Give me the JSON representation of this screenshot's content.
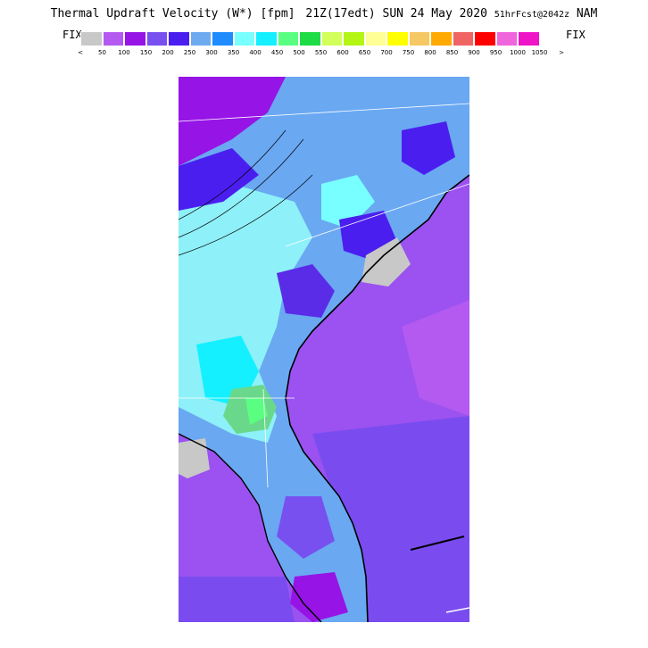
{
  "header": {
    "title_main": "Thermal Updraft Velocity (W*) [fpm]",
    "title_time": "21Z(17edt) SUN 24 May 2020",
    "title_forecast": "51hrFcst@2042z",
    "title_model": "NAM",
    "fix_left": "FIX",
    "fix_right": "FIX"
  },
  "colorbar": {
    "colors": [
      "#c8c8c8",
      "#b45af0",
      "#9614e6",
      "#7850f0",
      "#4b1ef0",
      "#6eaaf0",
      "#1e8cff",
      "#78ffff",
      "#14f0ff",
      "#5aff82",
      "#1edc46",
      "#d2ff5a",
      "#b4f514",
      "#ffff96",
      "#ffff00",
      "#f5c864",
      "#ffaa00",
      "#f06464",
      "#ff0000",
      "#f064dc",
      "#f014c8"
    ],
    "labels": [
      "<",
      "50",
      "100",
      "150",
      "200",
      "250",
      "300",
      "350",
      "400",
      "450",
      "500",
      "550",
      "600",
      "650",
      "700",
      "750",
      "800",
      "850",
      "900",
      "950",
      "1000",
      "1050",
      ">"
    ]
  },
  "map": {
    "description_icon": "thermal-map",
    "ocean_color": "#9b52f0",
    "deep_ocean_color": "#7a4cf0",
    "land_light_cyan": "#8ef0f8",
    "land_blue": "#6aa8f2",
    "land_cyan": "#1ce8ff",
    "land_purple": "#5a2ce8",
    "land_green": "#6ad88a",
    "gray_area": "#c8c8c8"
  }
}
